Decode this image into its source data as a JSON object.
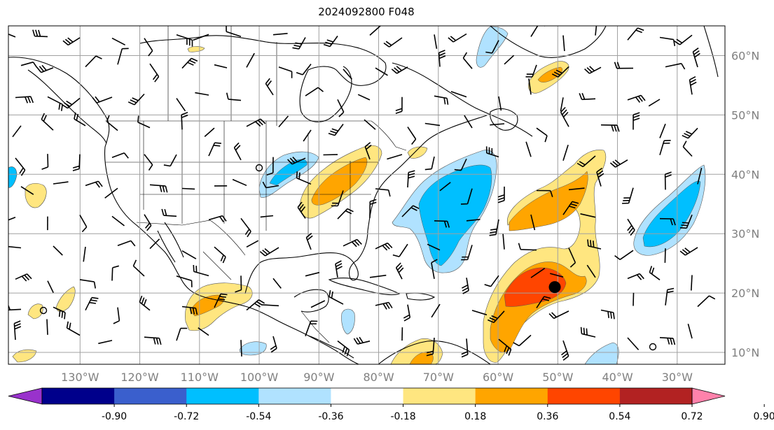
{
  "title": "2024092800 F048",
  "map": {
    "lon_labels": [
      "130°W",
      "120°W",
      "110°W",
      "100°W",
      "90°W",
      "80°W",
      "70°W",
      "60°W",
      "50°W",
      "40°W",
      "30°W"
    ],
    "lat_labels": [
      "60°N",
      "50°N",
      "40°N",
      "30°N",
      "20°N",
      "10°N"
    ],
    "lon_values": [
      -130,
      -120,
      -110,
      -100,
      -90,
      -80,
      -70,
      -60,
      -50,
      -40,
      -30
    ],
    "lat_values": [
      60,
      50,
      40,
      30,
      20,
      10
    ],
    "extent": {
      "lon_min": -142,
      "lon_max": -22,
      "lat_min": 8,
      "lat_max": 65
    },
    "storm_center": {
      "lon": -50.5,
      "lat": 21
    },
    "land_outline_color": "#000000",
    "grid_color": "#a0a0a0"
  },
  "colorbar": {
    "levels": [
      "-0.90",
      "-0.72",
      "-0.54",
      "-0.36",
      "-0.18",
      "0.18",
      "0.36",
      "0.54",
      "0.72",
      "0.90"
    ],
    "colors": [
      "#9932cc",
      "#00008b",
      "#3a5fcd",
      "#00bfff",
      "#b0e2ff",
      "#ffffff",
      "#ffe680",
      "#ffa500",
      "#ff4500",
      "#b22222",
      "#ff82ab"
    ]
  }
}
